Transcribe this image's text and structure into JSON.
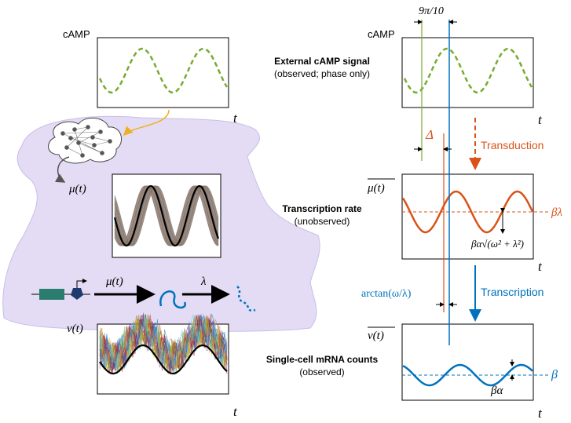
{
  "top_left": {
    "ylabel": "cAMP",
    "xlabel": "t"
  },
  "top_right": {
    "ylabel": "cAMP",
    "xlabel": "t",
    "phase_label": "9π/10"
  },
  "signal_caption": {
    "title": "External cAMP signal",
    "subtitle": "(observed; phase only)"
  },
  "cell": {
    "rate_label": "μ(t)",
    "reaction_rate": "μ(t)",
    "decay_rate": "λ"
  },
  "transduction": {
    "label": "Transduction",
    "delta": "Δ"
  },
  "middle_right": {
    "ylabel": "μ(t)",
    "xlabel": "t",
    "mean_label": "βλ",
    "amplitude_label": "βα√(ω² + λ²)"
  },
  "rate_caption": {
    "title": "Transcription rate",
    "subtitle": "(unobserved)"
  },
  "transcription": {
    "label": "Transcription",
    "shift_label": "arctan(ω/λ)"
  },
  "bottom_left": {
    "ylabel": "ν(t)",
    "xlabel": "t"
  },
  "bottom_right": {
    "ylabel": "ν(t)",
    "xlabel": "t",
    "mean_label": "β",
    "amplitude_label": "βα"
  },
  "counts_caption": {
    "title": "Single-cell mRNA counts",
    "subtitle": "(observed)"
  }
}
